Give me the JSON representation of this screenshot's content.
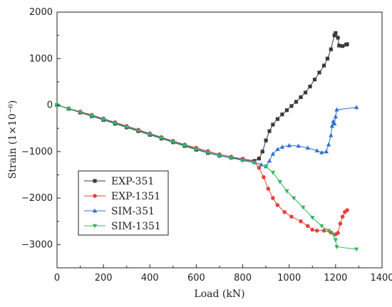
{
  "chart_data": {
    "type": "line",
    "xlabel": "Load (kN)",
    "ylabel": "Strain (1×10⁻⁶)",
    "xlim": [
      0,
      1400
    ],
    "ylim": [
      -3500,
      2000
    ],
    "xticks": [
      0,
      200,
      400,
      600,
      800,
      1000,
      1200,
      1400
    ],
    "yticks": [
      -3000,
      -2000,
      -1000,
      0,
      1000,
      2000
    ],
    "grid": false,
    "legend_position": "bottom-left",
    "series": [
      {
        "name": "EXP-351",
        "color": "#3a3a3a",
        "marker": "square",
        "points": [
          [
            0,
            0
          ],
          [
            50,
            -80
          ],
          [
            100,
            -160
          ],
          [
            150,
            -240
          ],
          [
            200,
            -320
          ],
          [
            250,
            -400
          ],
          [
            300,
            -480
          ],
          [
            350,
            -560
          ],
          [
            400,
            -640
          ],
          [
            450,
            -720
          ],
          [
            500,
            -800
          ],
          [
            550,
            -880
          ],
          [
            600,
            -960
          ],
          [
            650,
            -1030
          ],
          [
            700,
            -1090
          ],
          [
            750,
            -1130
          ],
          [
            800,
            -1160
          ],
          [
            850,
            -1200
          ],
          [
            870,
            -1150
          ],
          [
            885,
            -1000
          ],
          [
            900,
            -760
          ],
          [
            915,
            -560
          ],
          [
            930,
            -420
          ],
          [
            950,
            -300
          ],
          [
            970,
            -200
          ],
          [
            990,
            -110
          ],
          [
            1010,
            -20
          ],
          [
            1030,
            70
          ],
          [
            1050,
            170
          ],
          [
            1070,
            270
          ],
          [
            1090,
            400
          ],
          [
            1110,
            550
          ],
          [
            1130,
            700
          ],
          [
            1150,
            850
          ],
          [
            1165,
            1000
          ],
          [
            1180,
            1200
          ],
          [
            1195,
            1500
          ],
          [
            1200,
            1550
          ],
          [
            1210,
            1450
          ],
          [
            1215,
            1280
          ],
          [
            1230,
            1270
          ],
          [
            1245,
            1300
          ],
          [
            1250,
            1310
          ]
        ]
      },
      {
        "name": "EXP-1351",
        "color": "#e8413a",
        "marker": "circle",
        "points": [
          [
            0,
            0
          ],
          [
            50,
            -70
          ],
          [
            100,
            -140
          ],
          [
            150,
            -210
          ],
          [
            200,
            -290
          ],
          [
            250,
            -370
          ],
          [
            300,
            -450
          ],
          [
            350,
            -530
          ],
          [
            400,
            -610
          ],
          [
            450,
            -690
          ],
          [
            500,
            -770
          ],
          [
            550,
            -850
          ],
          [
            600,
            -920
          ],
          [
            650,
            -990
          ],
          [
            700,
            -1060
          ],
          [
            750,
            -1110
          ],
          [
            800,
            -1160
          ],
          [
            850,
            -1230
          ],
          [
            870,
            -1350
          ],
          [
            890,
            -1550
          ],
          [
            910,
            -1800
          ],
          [
            930,
            -2000
          ],
          [
            950,
            -2150
          ],
          [
            980,
            -2300
          ],
          [
            1010,
            -2400
          ],
          [
            1050,
            -2500
          ],
          [
            1080,
            -2600
          ],
          [
            1100,
            -2680
          ],
          [
            1120,
            -2700
          ],
          [
            1150,
            -2700
          ],
          [
            1180,
            -2740
          ],
          [
            1200,
            -2780
          ],
          [
            1210,
            -2750
          ],
          [
            1220,
            -2550
          ],
          [
            1230,
            -2400
          ],
          [
            1240,
            -2300
          ],
          [
            1250,
            -2260
          ]
        ]
      },
      {
        "name": "SIM-351",
        "color": "#2f6fd0",
        "marker": "triangle-up",
        "points": [
          [
            0,
            0
          ],
          [
            50,
            -75
          ],
          [
            100,
            -150
          ],
          [
            150,
            -225
          ],
          [
            200,
            -300
          ],
          [
            250,
            -380
          ],
          [
            300,
            -460
          ],
          [
            350,
            -540
          ],
          [
            400,
            -620
          ],
          [
            450,
            -700
          ],
          [
            500,
            -780
          ],
          [
            550,
            -860
          ],
          [
            600,
            -940
          ],
          [
            650,
            -1010
          ],
          [
            700,
            -1080
          ],
          [
            750,
            -1130
          ],
          [
            800,
            -1180
          ],
          [
            850,
            -1230
          ],
          [
            880,
            -1280
          ],
          [
            900,
            -1320
          ],
          [
            915,
            -1200
          ],
          [
            930,
            -1050
          ],
          [
            950,
            -950
          ],
          [
            970,
            -900
          ],
          [
            1000,
            -870
          ],
          [
            1040,
            -880
          ],
          [
            1080,
            -920
          ],
          [
            1120,
            -980
          ],
          [
            1140,
            -1020
          ],
          [
            1160,
            -1000
          ],
          [
            1170,
            -850
          ],
          [
            1180,
            -650
          ],
          [
            1185,
            -450
          ],
          [
            1190,
            -350
          ],
          [
            1195,
            -400
          ],
          [
            1200,
            -250
          ],
          [
            1205,
            -100
          ],
          [
            1290,
            -50
          ]
        ]
      },
      {
        "name": "SIM-1351",
        "color": "#35b560",
        "marker": "triangle-down",
        "points": [
          [
            0,
            0
          ],
          [
            50,
            -75
          ],
          [
            100,
            -150
          ],
          [
            150,
            -230
          ],
          [
            200,
            -310
          ],
          [
            250,
            -390
          ],
          [
            300,
            -470
          ],
          [
            350,
            -550
          ],
          [
            400,
            -630
          ],
          [
            450,
            -710
          ],
          [
            500,
            -790
          ],
          [
            550,
            -870
          ],
          [
            600,
            -950
          ],
          [
            650,
            -1020
          ],
          [
            700,
            -1090
          ],
          [
            750,
            -1140
          ],
          [
            800,
            -1190
          ],
          [
            850,
            -1240
          ],
          [
            900,
            -1320
          ],
          [
            930,
            -1450
          ],
          [
            960,
            -1650
          ],
          [
            990,
            -1850
          ],
          [
            1020,
            -2000
          ],
          [
            1060,
            -2200
          ],
          [
            1100,
            -2420
          ],
          [
            1140,
            -2600
          ],
          [
            1170,
            -2700
          ],
          [
            1190,
            -2780
          ],
          [
            1200,
            -2900
          ],
          [
            1205,
            -3050
          ],
          [
            1290,
            -3100
          ]
        ]
      }
    ]
  }
}
